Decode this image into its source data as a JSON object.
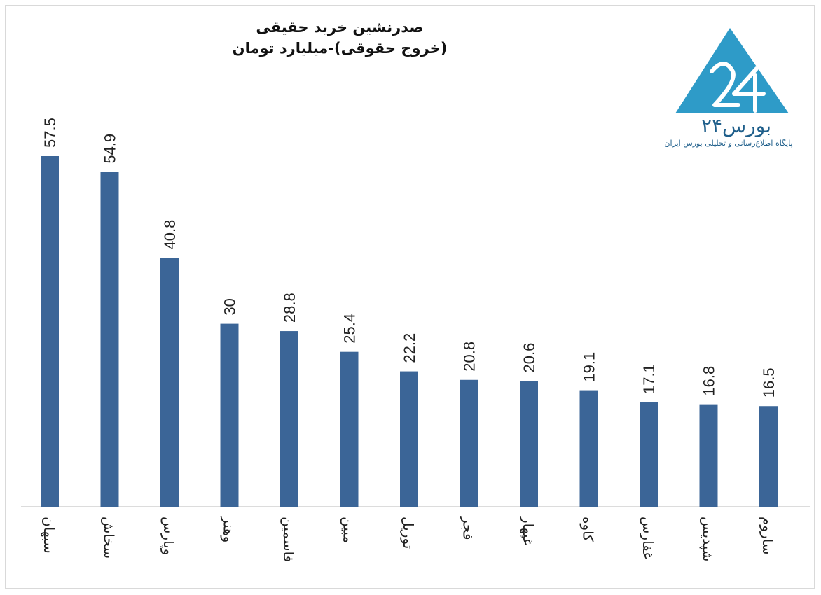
{
  "chart_data": {
    "type": "bar",
    "title": "صدرنشین خرید حقیقی",
    "subtitle": "(خروج حقوقی)-میلیارد تومان",
    "categories": [
      "سبهان",
      "سخاش",
      "وپارس",
      "وهنر",
      "فاسمین",
      "مبین",
      "توریل",
      "فجر",
      "غپهار",
      "کاوه",
      "غفارس",
      "شپدیس",
      "ساروم"
    ],
    "values": [
      57.5,
      54.9,
      40.8,
      30,
      28.8,
      25.4,
      22.2,
      20.8,
      20.6,
      19.1,
      17.1,
      16.8,
      16.5
    ],
    "value_labels": [
      "57.5",
      "54.9",
      "40.8",
      "30",
      "28.8",
      "25.4",
      "22.2",
      "20.8",
      "20.6",
      "19.1",
      "17.1",
      "16.8",
      "16.5"
    ],
    "bar_color": "#3b6597",
    "ylim": [
      0,
      57.5
    ],
    "grid": false,
    "legend": "none"
  },
  "logo": {
    "name": "بورس۲۴",
    "tagline": "پایگاه اطلاع‌رسانی و تحلیلی بورس ایران",
    "color": "#2e9bc8",
    "text_color": "#1f5f8b"
  }
}
